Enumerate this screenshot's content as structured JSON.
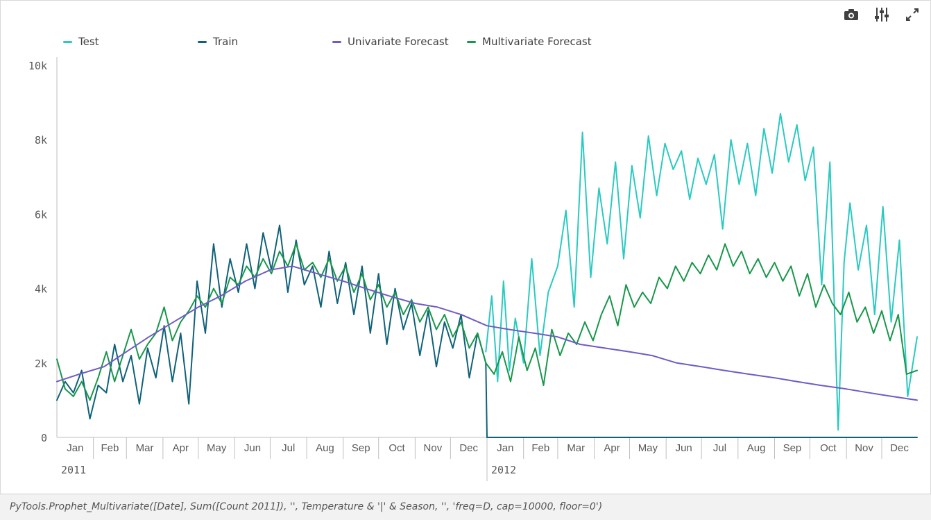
{
  "toolbar": [
    {
      "icon": "camera-icon",
      "label": "Snapshot"
    },
    {
      "icon": "sliders-icon",
      "label": "Settings"
    },
    {
      "icon": "expand-icon",
      "label": "Fullscreen"
    }
  ],
  "footer": {
    "expression": "PyTools.Prophet_Multivariate([Date], Sum([Count 2011]), '', Temperature & '|' & Season, '', 'freq=D, cap=10000, floor=0')"
  },
  "colors": {
    "test": "#29cac0",
    "train": "#0f6179",
    "univariate": "#6f5bc7",
    "multivariate": "#17974a",
    "axis_text": "#595959",
    "axis_line": "#bfbfbf"
  },
  "chart_data": {
    "type": "line",
    "title": "",
    "xlabel": "",
    "ylabel": "",
    "x_range": [
      "2011-01-01",
      "2012-12-31"
    ],
    "ylim": [
      0,
      10000
    ],
    "yticks": [
      {
        "value": 0,
        "label": "0"
      },
      {
        "value": 2000,
        "label": "2k"
      },
      {
        "value": 4000,
        "label": "4k"
      },
      {
        "value": 6000,
        "label": "6k"
      },
      {
        "value": 8000,
        "label": "8k"
      },
      {
        "value": 10000,
        "label": "10k"
      }
    ],
    "month_labels": [
      "Jan",
      "Feb",
      "Mar",
      "Apr",
      "May",
      "Jun",
      "Jul",
      "Aug",
      "Sep",
      "Oct",
      "Nov",
      "Dec"
    ],
    "year_labels": [
      "2011",
      "2012"
    ],
    "grid": false,
    "legend_position": "top",
    "series": [
      {
        "name": "Test",
        "color": "#29cac0",
        "x": [
          "2011-12-31",
          "2012-01-05",
          "2012-01-10",
          "2012-01-15",
          "2012-01-20",
          "2012-01-25",
          "2012-02-01",
          "2012-02-08",
          "2012-02-15",
          "2012-02-22",
          "2012-03-01",
          "2012-03-08",
          "2012-03-15",
          "2012-03-22",
          "2012-03-29",
          "2012-04-05",
          "2012-04-12",
          "2012-04-19",
          "2012-04-26",
          "2012-05-03",
          "2012-05-10",
          "2012-05-17",
          "2012-05-24",
          "2012-05-31",
          "2012-06-07",
          "2012-06-14",
          "2012-06-21",
          "2012-06-28",
          "2012-07-05",
          "2012-07-12",
          "2012-07-19",
          "2012-07-26",
          "2012-08-02",
          "2012-08-09",
          "2012-08-16",
          "2012-08-23",
          "2012-08-30",
          "2012-09-06",
          "2012-09-13",
          "2012-09-20",
          "2012-09-27",
          "2012-10-04",
          "2012-10-11",
          "2012-10-18",
          "2012-10-25",
          "2012-10-30",
          "2012-11-04",
          "2012-11-11",
          "2012-11-18",
          "2012-11-25",
          "2012-12-02",
          "2012-12-09",
          "2012-12-16",
          "2012-12-23",
          "2012-12-31"
        ],
        "values": [
          2300,
          3800,
          1500,
          4200,
          1800,
          3200,
          2000,
          4800,
          2200,
          3900,
          4600,
          6100,
          3500,
          8200,
          4300,
          6700,
          5200,
          7400,
          4800,
          7300,
          5900,
          8100,
          6500,
          7900,
          7200,
          7700,
          6400,
          7500,
          6800,
          7600,
          5600,
          8000,
          6800,
          7900,
          6500,
          8300,
          7100,
          8700,
          7400,
          8400,
          6900,
          7800,
          4100,
          7400,
          200,
          4700,
          6300,
          4500,
          5700,
          3300,
          6200,
          3100,
          5300,
          1100,
          2700
        ]
      },
      {
        "name": "Train",
        "color": "#0f6179",
        "x": [
          "2011-01-01",
          "2011-01-08",
          "2011-01-15",
          "2011-01-22",
          "2011-01-29",
          "2011-02-05",
          "2011-02-12",
          "2011-02-19",
          "2011-02-26",
          "2011-03-05",
          "2011-03-12",
          "2011-03-19",
          "2011-03-26",
          "2011-04-02",
          "2011-04-09",
          "2011-04-16",
          "2011-04-23",
          "2011-04-30",
          "2011-05-07",
          "2011-05-14",
          "2011-05-21",
          "2011-05-28",
          "2011-06-04",
          "2011-06-11",
          "2011-06-18",
          "2011-06-25",
          "2011-07-02",
          "2011-07-09",
          "2011-07-16",
          "2011-07-23",
          "2011-07-30",
          "2011-08-06",
          "2011-08-13",
          "2011-08-20",
          "2011-08-27",
          "2011-09-03",
          "2011-09-10",
          "2011-09-17",
          "2011-09-24",
          "2011-10-01",
          "2011-10-08",
          "2011-10-15",
          "2011-10-22",
          "2011-10-29",
          "2011-11-05",
          "2011-11-12",
          "2011-11-19",
          "2011-11-26",
          "2011-12-03",
          "2011-12-10",
          "2011-12-17",
          "2011-12-24",
          "2011-12-31",
          "2012-01-01",
          "2012-12-31"
        ],
        "values": [
          1000,
          1500,
          1200,
          1800,
          500,
          1400,
          1200,
          2500,
          1500,
          2200,
          900,
          2400,
          1600,
          3000,
          1500,
          2800,
          900,
          4200,
          2800,
          5200,
          3500,
          4800,
          3900,
          5200,
          4000,
          5500,
          4500,
          5700,
          3900,
          5300,
          4100,
          4600,
          3500,
          5000,
          3600,
          4700,
          3300,
          4600,
          2800,
          4400,
          2500,
          4000,
          2900,
          3600,
          2200,
          3400,
          1900,
          3100,
          2400,
          3300,
          1600,
          2800,
          2000,
          0,
          0
        ]
      },
      {
        "name": "Univariate Forecast",
        "color": "#6f5bc7",
        "x": [
          "2011-01-01",
          "2011-01-20",
          "2011-02-10",
          "2011-03-01",
          "2011-03-20",
          "2011-04-10",
          "2011-05-01",
          "2011-05-20",
          "2011-06-10",
          "2011-07-01",
          "2011-07-20",
          "2011-08-10",
          "2011-09-01",
          "2011-09-20",
          "2011-10-10",
          "2011-11-01",
          "2011-11-20",
          "2011-12-10",
          "2012-01-01",
          "2012-01-20",
          "2012-02-10",
          "2012-03-01",
          "2012-03-20",
          "2012-04-10",
          "2012-05-01",
          "2012-05-20",
          "2012-06-10",
          "2012-07-01",
          "2012-07-20",
          "2012-08-10",
          "2012-09-01",
          "2012-09-20",
          "2012-10-10",
          "2012-11-01",
          "2012-11-20",
          "2012-12-10",
          "2012-12-31"
        ],
        "values": [
          1500,
          1700,
          1900,
          2300,
          2700,
          3100,
          3500,
          3800,
          4200,
          4500,
          4600,
          4400,
          4200,
          4000,
          3800,
          3600,
          3500,
          3300,
          3000,
          2900,
          2800,
          2700,
          2500,
          2400,
          2300,
          2200,
          2000,
          1900,
          1800,
          1700,
          1600,
          1500,
          1400,
          1300,
          1200,
          1100,
          1000
        ]
      },
      {
        "name": "Multivariate Forecast",
        "color": "#17974a",
        "x": [
          "2011-01-01",
          "2011-01-08",
          "2011-01-15",
          "2011-01-22",
          "2011-01-29",
          "2011-02-05",
          "2011-02-12",
          "2011-02-19",
          "2011-02-26",
          "2011-03-05",
          "2011-03-12",
          "2011-03-19",
          "2011-03-26",
          "2011-04-02",
          "2011-04-09",
          "2011-04-16",
          "2011-04-23",
          "2011-04-30",
          "2011-05-07",
          "2011-05-14",
          "2011-05-21",
          "2011-05-28",
          "2011-06-04",
          "2011-06-11",
          "2011-06-18",
          "2011-06-25",
          "2011-07-02",
          "2011-07-09",
          "2011-07-16",
          "2011-07-23",
          "2011-07-30",
          "2011-08-06",
          "2011-08-13",
          "2011-08-20",
          "2011-08-27",
          "2011-09-03",
          "2011-09-10",
          "2011-09-17",
          "2011-09-24",
          "2011-10-01",
          "2011-10-08",
          "2011-10-15",
          "2011-10-22",
          "2011-10-29",
          "2011-11-05",
          "2011-11-12",
          "2011-11-19",
          "2011-11-26",
          "2011-12-03",
          "2011-12-10",
          "2011-12-17",
          "2011-12-24",
          "2011-12-31",
          "2012-01-07",
          "2012-01-14",
          "2012-01-21",
          "2012-01-28",
          "2012-02-04",
          "2012-02-11",
          "2012-02-18",
          "2012-02-25",
          "2012-03-03",
          "2012-03-10",
          "2012-03-17",
          "2012-03-24",
          "2012-03-31",
          "2012-04-07",
          "2012-04-14",
          "2012-04-21",
          "2012-04-28",
          "2012-05-05",
          "2012-05-12",
          "2012-05-19",
          "2012-05-26",
          "2012-06-02",
          "2012-06-09",
          "2012-06-16",
          "2012-06-23",
          "2012-06-30",
          "2012-07-07",
          "2012-07-14",
          "2012-07-21",
          "2012-07-28",
          "2012-08-04",
          "2012-08-11",
          "2012-08-18",
          "2012-08-25",
          "2012-09-01",
          "2012-09-08",
          "2012-09-15",
          "2012-09-22",
          "2012-09-29",
          "2012-10-06",
          "2012-10-13",
          "2012-10-20",
          "2012-10-27",
          "2012-11-03",
          "2012-11-10",
          "2012-11-17",
          "2012-11-24",
          "2012-12-01",
          "2012-12-08",
          "2012-12-15",
          "2012-12-22",
          "2012-12-31"
        ],
        "values": [
          2100,
          1300,
          1100,
          1500,
          1000,
          1600,
          2300,
          1500,
          2200,
          2900,
          2100,
          2500,
          2800,
          3500,
          2600,
          3100,
          3400,
          3800,
          3500,
          4000,
          3600,
          4300,
          4100,
          4600,
          4300,
          4800,
          4400,
          5000,
          4600,
          5200,
          4500,
          4700,
          4300,
          4800,
          4200,
          4600,
          3900,
          4400,
          3700,
          4100,
          3500,
          3900,
          3300,
          3700,
          3100,
          3500,
          2900,
          3300,
          2700,
          3100,
          2400,
          2800,
          2000,
          1700,
          2300,
          1500,
          2700,
          1800,
          2400,
          1400,
          2900,
          2200,
          2800,
          2500,
          3100,
          2600,
          3300,
          3800,
          3000,
          4100,
          3500,
          3900,
          3600,
          4300,
          4000,
          4600,
          4200,
          4700,
          4400,
          4900,
          4500,
          5200,
          4600,
          5000,
          4400,
          4800,
          4300,
          4700,
          4200,
          4600,
          3800,
          4400,
          3500,
          4100,
          3600,
          3300,
          3900,
          3100,
          3500,
          2800,
          3400,
          2600,
          3300,
          1700,
          1800
        ]
      }
    ]
  }
}
